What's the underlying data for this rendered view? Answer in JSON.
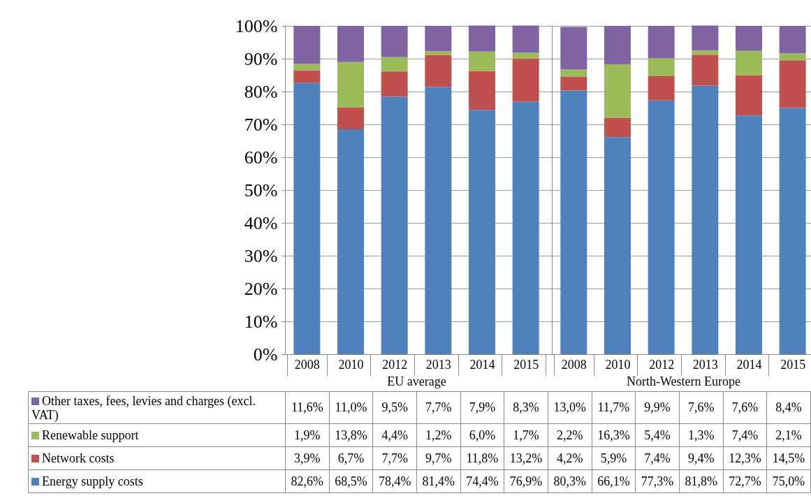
{
  "chart_data": [
    {
      "type": "bar",
      "stacked": true,
      "xlabel": "EU average",
      "categories": [
        "2008",
        "2010",
        "2012",
        "2013",
        "2014",
        "2015"
      ],
      "ylim": [
        0,
        100
      ],
      "yticks": [
        {
          "value": 0,
          "label": "0%"
        },
        {
          "value": 10,
          "label": "10%"
        },
        {
          "value": 20,
          "label": "20%"
        },
        {
          "value": 30,
          "label": "30%"
        },
        {
          "value": 40,
          "label": "40%"
        },
        {
          "value": 50,
          "label": "50%"
        },
        {
          "value": 60,
          "label": "60%"
        },
        {
          "value": 70,
          "label": "70%"
        },
        {
          "value": 80,
          "label": "80%"
        },
        {
          "value": 90,
          "label": "90%"
        },
        {
          "value": 100,
          "label": "100%"
        }
      ],
      "grid": "y",
      "legend": "bottom",
      "series": [
        {
          "name": "Energy supply costs",
          "color": "#4f81bd",
          "values": [
            82.6,
            68.5,
            78.4,
            81.4,
            74.4,
            76.9
          ],
          "value_labels": [
            "82,6%",
            "68,5%",
            "78,4%",
            "81,4%",
            "74,4%",
            "76,9%"
          ]
        },
        {
          "name": "Network costs",
          "color": "#c0504d",
          "values": [
            3.9,
            6.7,
            7.7,
            9.7,
            11.8,
            13.2
          ],
          "value_labels": [
            "3,9%",
            "6,7%",
            "7,7%",
            "9,7%",
            "11,8%",
            "13,2%"
          ]
        },
        {
          "name": "Renewable support",
          "color": "#9bbb59",
          "values": [
            1.9,
            13.8,
            4.4,
            1.2,
            6.0,
            1.7
          ],
          "value_labels": [
            "1,9%",
            "13,8%",
            "4,4%",
            "1,2%",
            "6,0%",
            "1,7%"
          ]
        },
        {
          "name": "Other taxes, fees, levies and charges (excl. VAT)",
          "color": "#8064a2",
          "values": [
            11.6,
            11.0,
            9.5,
            7.7,
            7.9,
            8.3
          ],
          "value_labels": [
            "11,6%",
            "11,0%",
            "9,5%",
            "7,7%",
            "7,9%",
            "8,3%"
          ]
        }
      ]
    },
    {
      "type": "bar",
      "stacked": true,
      "xlabel": "North-Western Europe",
      "categories": [
        "2008",
        "2010",
        "2012",
        "2013",
        "2014",
        "2015"
      ],
      "ylim": [
        0,
        100
      ],
      "yticks": [
        {
          "value": 0,
          "label": null
        },
        {
          "value": 10,
          "label": null
        },
        {
          "value": 20,
          "label": null
        },
        {
          "value": 30,
          "label": null
        },
        {
          "value": 40,
          "label": null
        },
        {
          "value": 50,
          "label": null
        },
        {
          "value": 60,
          "label": null
        },
        {
          "value": 70,
          "label": null
        },
        {
          "value": 80,
          "label": null
        },
        {
          "value": 90,
          "label": null
        },
        {
          "value": 100,
          "label": null
        }
      ],
      "grid": "y",
      "tick_labels": "x",
      "series": [
        {
          "color": "#4f81bd",
          "values": [
            80.3,
            66.1,
            77.3,
            81.8,
            72.7,
            75.0
          ],
          "value_labels": [
            "80,3%",
            "66,1%",
            "77,3%",
            "81,8%",
            "72,7%",
            "75,0%"
          ]
        },
        {
          "color": "#c0504d",
          "values": [
            4.2,
            5.9,
            7.4,
            9.4,
            12.3,
            14.5
          ],
          "value_labels": [
            "4,2%",
            "5,9%",
            "7,4%",
            "9,4%",
            "12,3%",
            "14,5%"
          ]
        },
        {
          "color": "#9bbb59",
          "values": [
            2.2,
            16.3,
            5.4,
            1.3,
            7.4,
            2.1
          ],
          "value_labels": [
            "2,2%",
            "16,3%",
            "5,4%",
            "1,3%",
            "7,4%",
            "2,1%"
          ]
        },
        {
          "color": "#8064a2",
          "values": [
            13.0,
            11.7,
            9.9,
            7.6,
            7.6,
            8.4
          ],
          "value_labels": [
            "13,0%",
            "11,7%",
            "9,9%",
            "7,6%",
            "7,6%",
            "8,4%"
          ]
        }
      ]
    }
  ]
}
